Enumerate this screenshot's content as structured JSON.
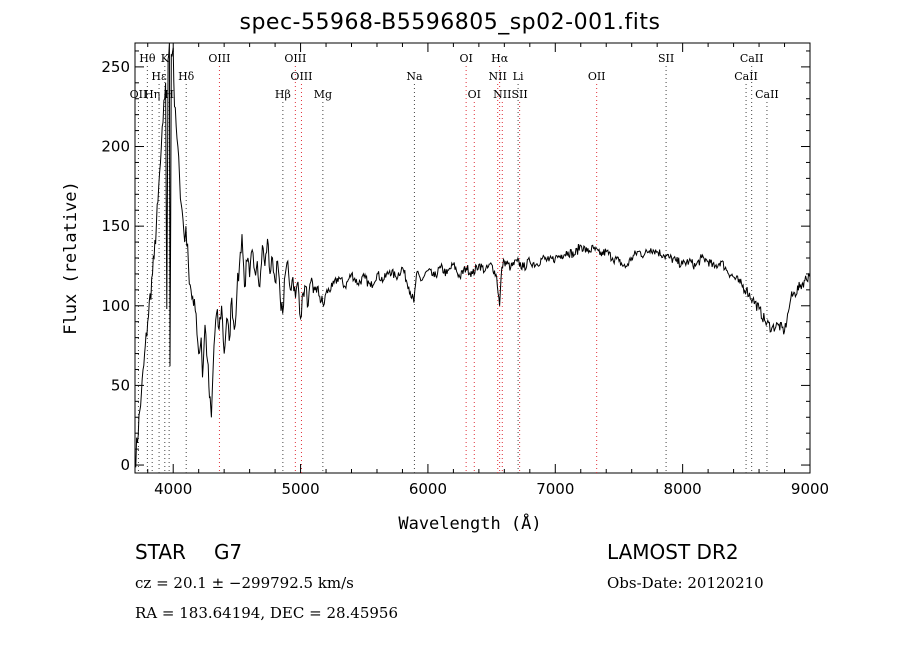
{
  "title": "spec-55968-B5596805_sp02-001.fits",
  "info": {
    "object_class": "STAR",
    "subclass": "G7",
    "survey": "LAMOST DR2",
    "cz": "cz = 20.1 ± −299792.5 km/s",
    "obs_date": "Obs-Date: 20120210",
    "coords": "RA = 183.64194, DEC =  28.45956"
  },
  "colors": {
    "emission": "#e0303a",
    "absorption": "#444444",
    "spectrum": "#000000"
  },
  "chart_data": {
    "type": "line",
    "title": "spec-55968-B5596805_sp02-001.fits",
    "xlabel": "Wavelength (Å)",
    "ylabel": "Flux (relative)",
    "xlim": [
      3700,
      9000
    ],
    "ylim": [
      -5,
      265
    ],
    "x_ticks": [
      4000,
      5000,
      6000,
      7000,
      8000,
      9000
    ],
    "y_ticks": [
      0,
      50,
      100,
      150,
      200,
      250
    ],
    "grid": false,
    "series": [
      {
        "values": [
          [
            3700,
            0
          ],
          [
            3750,
            45
          ],
          [
            3800,
            90
          ],
          [
            3850,
            130
          ],
          [
            3880,
            165
          ],
          [
            3900,
            190
          ],
          [
            3920,
            215
          ],
          [
            3940,
            240
          ],
          [
            3950,
            98
          ],
          [
            3960,
            255
          ],
          [
            3970,
            265
          ],
          [
            3975,
            62
          ],
          [
            3985,
            258
          ],
          [
            4000,
            262
          ],
          [
            4010,
            225
          ],
          [
            4030,
            205
          ],
          [
            4050,
            180
          ],
          [
            4070,
            160
          ],
          [
            4090,
            140
          ],
          [
            4100,
            150
          ],
          [
            4120,
            125
          ],
          [
            4140,
            110
          ],
          [
            4160,
            100
          ],
          [
            4180,
            95
          ],
          [
            4200,
            70
          ],
          [
            4220,
            80
          ],
          [
            4230,
            55
          ],
          [
            4250,
            88
          ],
          [
            4270,
            65
          ],
          [
            4285,
            42
          ],
          [
            4300,
            30
          ],
          [
            4320,
            75
          ],
          [
            4340,
            95
          ],
          [
            4360,
            85
          ],
          [
            4380,
            100
          ],
          [
            4400,
            70
          ],
          [
            4420,
            92
          ],
          [
            4440,
            78
          ],
          [
            4460,
            105
          ],
          [
            4480,
            85
          ],
          [
            4500,
            108
          ],
          [
            4520,
            125
          ],
          [
            4540,
            145
          ],
          [
            4560,
            112
          ],
          [
            4580,
            128
          ],
          [
            4600,
            118
          ],
          [
            4620,
            135
          ],
          [
            4640,
            122
          ],
          [
            4660,
            128
          ],
          [
            4680,
            112
          ],
          [
            4700,
            138
          ],
          [
            4720,
            125
          ],
          [
            4740,
            142
          ],
          [
            4760,
            120
          ],
          [
            4780,
            130
          ],
          [
            4800,
            115
          ],
          [
            4820,
            128
          ],
          [
            4840,
            105
          ],
          [
            4860,
            95
          ],
          [
            4880,
            120
          ],
          [
            4900,
            128
          ],
          [
            4920,
            110
          ],
          [
            4940,
            118
          ],
          [
            4960,
            105
          ],
          [
            4980,
            115
          ],
          [
            5000,
            92
          ],
          [
            5020,
            108
          ],
          [
            5040,
            112
          ],
          [
            5060,
            100
          ],
          [
            5080,
            115
          ],
          [
            5100,
            108
          ],
          [
            5120,
            112
          ],
          [
            5150,
            106
          ],
          [
            5180,
            100
          ],
          [
            5200,
            108
          ],
          [
            5250,
            112
          ],
          [
            5300,
            118
          ],
          [
            5350,
            112
          ],
          [
            5400,
            120
          ],
          [
            5450,
            114
          ],
          [
            5500,
            118
          ],
          [
            5550,
            112
          ],
          [
            5600,
            120
          ],
          [
            5650,
            116
          ],
          [
            5700,
            122
          ],
          [
            5750,
            118
          ],
          [
            5800,
            124
          ],
          [
            5850,
            112
          ],
          [
            5890,
            102
          ],
          [
            5910,
            120
          ],
          [
            5950,
            116
          ],
          [
            6000,
            122
          ],
          [
            6050,
            118
          ],
          [
            6100,
            124
          ],
          [
            6150,
            120
          ],
          [
            6200,
            126
          ],
          [
            6250,
            118
          ],
          [
            6300,
            124
          ],
          [
            6350,
            120
          ],
          [
            6400,
            126
          ],
          [
            6450,
            122
          ],
          [
            6500,
            126
          ],
          [
            6540,
            118
          ],
          [
            6563,
            100
          ],
          [
            6580,
            124
          ],
          [
            6600,
            128
          ],
          [
            6650,
            124
          ],
          [
            6700,
            128
          ],
          [
            6750,
            124
          ],
          [
            6800,
            128
          ],
          [
            6850,
            126
          ],
          [
            6900,
            130
          ],
          [
            6950,
            128
          ],
          [
            7000,
            130
          ],
          [
            7050,
            132
          ],
          [
            7100,
            134
          ],
          [
            7150,
            132
          ],
          [
            7200,
            138
          ],
          [
            7250,
            134
          ],
          [
            7300,
            136
          ],
          [
            7350,
            132
          ],
          [
            7400,
            134
          ],
          [
            7450,
            130
          ],
          [
            7500,
            128
          ],
          [
            7550,
            124
          ],
          [
            7600,
            130
          ],
          [
            7650,
            134
          ],
          [
            7700,
            132
          ],
          [
            7750,
            136
          ],
          [
            7800,
            134
          ],
          [
            7850,
            132
          ],
          [
            7900,
            130
          ],
          [
            7950,
            128
          ],
          [
            8000,
            126
          ],
          [
            8050,
            128
          ],
          [
            8100,
            125
          ],
          [
            8150,
            130
          ],
          [
            8200,
            128
          ],
          [
            8250,
            124
          ],
          [
            8300,
            128
          ],
          [
            8350,
            122
          ],
          [
            8400,
            118
          ],
          [
            8450,
            114
          ],
          [
            8500,
            110
          ],
          [
            8550,
            104
          ],
          [
            8600,
            98
          ],
          [
            8650,
            90
          ],
          [
            8700,
            86
          ],
          [
            8750,
            88
          ],
          [
            8800,
            84
          ],
          [
            8830,
            96
          ],
          [
            8850,
            105
          ],
          [
            8880,
            108
          ],
          [
            8920,
            112
          ],
          [
            8960,
            116
          ],
          [
            9000,
            120
          ]
        ]
      }
    ],
    "line_markers": [
      {
        "label": "OII",
        "wavelength": 3727,
        "kind": "absorption",
        "row": 3
      },
      {
        "label": "Hθ",
        "wavelength": 3797,
        "kind": "absorption",
        "row": 1
      },
      {
        "label": "Hη",
        "wavelength": 3835,
        "kind": "absorption",
        "row": 3
      },
      {
        "label": "Hε",
        "wavelength": 3889,
        "kind": "absorption",
        "row": 2
      },
      {
        "label": "K",
        "wavelength": 3934,
        "kind": "absorption",
        "row": 1
      },
      {
        "label": "H",
        "wavelength": 3968,
        "kind": "absorption",
        "row": 3
      },
      {
        "label": "Hδ",
        "wavelength": 4102,
        "kind": "absorption",
        "row": 2
      },
      {
        "label": "OIII",
        "wavelength": 4363,
        "kind": "emission",
        "row": 1
      },
      {
        "label": "Hβ",
        "wavelength": 4861,
        "kind": "absorption",
        "row": 3
      },
      {
        "label": "OIII",
        "wavelength": 4959,
        "kind": "emission",
        "row": 1
      },
      {
        "label": "OIII",
        "wavelength": 5007,
        "kind": "emission",
        "row": 2
      },
      {
        "label": "Mg",
        "wavelength": 5175,
        "kind": "absorption",
        "row": 3
      },
      {
        "label": "Na",
        "wavelength": 5894,
        "kind": "absorption",
        "row": 2
      },
      {
        "label": "OI",
        "wavelength": 6300,
        "kind": "emission",
        "row": 1
      },
      {
        "label": "OI",
        "wavelength": 6364,
        "kind": "emission",
        "row": 3
      },
      {
        "label": "Hα",
        "wavelength": 6563,
        "kind": "emission",
        "row": 1
      },
      {
        "label": "NII",
        "wavelength": 6548,
        "kind": "emission",
        "row": 2
      },
      {
        "label": "NII",
        "wavelength": 6584,
        "kind": "emission",
        "row": 3
      },
      {
        "label": "Li",
        "wavelength": 6708,
        "kind": "absorption",
        "row": 2
      },
      {
        "label": "SII",
        "wavelength": 6720,
        "kind": "emission",
        "row": 3
      },
      {
        "label": "OII",
        "wavelength": 7325,
        "kind": "emission",
        "row": 2
      },
      {
        "label": "SII",
        "wavelength": 7870,
        "kind": "absorption",
        "row": 1
      },
      {
        "label": "CaII",
        "wavelength": 8498,
        "kind": "absorption",
        "row": 2
      },
      {
        "label": "CaII",
        "wavelength": 8542,
        "kind": "absorption",
        "row": 1
      },
      {
        "label": "CaII",
        "wavelength": 8662,
        "kind": "absorption",
        "row": 3
      }
    ]
  }
}
